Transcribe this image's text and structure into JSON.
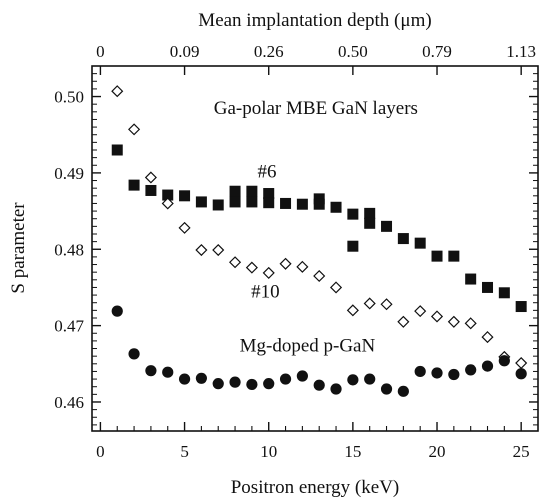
{
  "chart_data": {
    "type": "scatter",
    "xlabel": "Positron energy (keV)",
    "ylabel": "S parameter",
    "top_axis_label": "Mean implantation depth (μm)",
    "xlim": [
      -0.5,
      26
    ],
    "ylim": [
      0.4562,
      0.504
    ],
    "x_ticks": [
      0,
      5,
      10,
      15,
      20,
      25
    ],
    "y_ticks": [
      0.46,
      0.47,
      0.48,
      0.49,
      0.5
    ],
    "y_tick_labels": [
      "0.46",
      "0.47",
      "0.48",
      "0.49",
      "0.50"
    ],
    "top_ticks": [
      {
        "label": "0",
        "energy": 0
      },
      {
        "label": "0.09",
        "energy": 5
      },
      {
        "label": "0.26",
        "energy": 10
      },
      {
        "label": "0.50",
        "energy": 15
      },
      {
        "label": "0.79",
        "energy": 20
      },
      {
        "label": "1.13",
        "energy": 25
      }
    ],
    "annotations": [
      {
        "text": "Ga-polar MBE GaN layers",
        "x": 12.8,
        "y": 0.4977
      },
      {
        "text": "#6",
        "x": 9.9,
        "y": 0.4894
      },
      {
        "text": "#10",
        "x": 9.8,
        "y": 0.4737
      },
      {
        "text": "Mg-doped p-GaN",
        "x": 12.3,
        "y": 0.4666
      }
    ],
    "series": [
      {
        "marker": "filled-square",
        "label": "#6",
        "x": [
          1,
          2,
          3,
          4,
          5,
          6,
          7,
          8,
          8,
          9,
          9,
          10,
          10,
          11,
          12,
          13,
          13,
          14,
          15,
          15,
          16,
          16,
          17,
          18,
          19,
          20,
          21,
          22,
          23,
          24,
          25
        ],
        "y": [
          0.493,
          0.4884,
          0.4877,
          0.4871,
          0.487,
          0.4862,
          0.4858,
          0.4876,
          0.4862,
          0.4876,
          0.4862,
          0.4873,
          0.4861,
          0.486,
          0.4859,
          0.4866,
          0.4859,
          0.4855,
          0.4846,
          0.4804,
          0.4847,
          0.4834,
          0.483,
          0.4814,
          0.4808,
          0.4791,
          0.4791,
          0.4761,
          0.475,
          0.4743,
          0.4725
        ]
      },
      {
        "marker": "open-diamond",
        "label": "#10",
        "x": [
          1,
          2,
          3,
          4,
          5,
          6,
          7,
          8,
          9,
          10,
          11,
          12,
          13,
          14,
          15,
          16,
          17,
          18,
          19,
          20,
          21,
          22,
          23,
          24,
          25
        ],
        "y": [
          0.5007,
          0.4957,
          0.4894,
          0.486,
          0.4828,
          0.4799,
          0.4799,
          0.4783,
          0.4776,
          0.4769,
          0.4781,
          0.4777,
          0.4765,
          0.475,
          0.472,
          0.4729,
          0.4728,
          0.4705,
          0.4719,
          0.4712,
          0.4705,
          0.4703,
          0.4685,
          0.4659,
          0.4651
        ]
      },
      {
        "marker": "filled-circle",
        "label": "Mg-doped p-GaN",
        "x": [
          1,
          2,
          3,
          4,
          5,
          6,
          7,
          8,
          9,
          10,
          11,
          12,
          13,
          14,
          15,
          16,
          17,
          18,
          19,
          20,
          21,
          22,
          23,
          24,
          25
        ],
        "y": [
          0.4719,
          0.4663,
          0.4641,
          0.4639,
          0.463,
          0.4631,
          0.4624,
          0.4626,
          0.4623,
          0.4624,
          0.463,
          0.4634,
          0.4622,
          0.4617,
          0.4629,
          0.463,
          0.4617,
          0.4614,
          0.464,
          0.4638,
          0.4636,
          0.4642,
          0.4647,
          0.4654,
          0.4637
        ]
      }
    ]
  }
}
